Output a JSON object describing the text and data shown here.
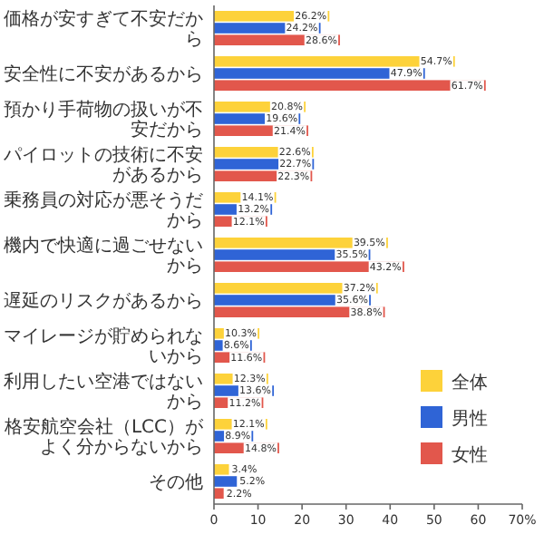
{
  "chart_data": {
    "type": "bar",
    "orientation": "horizontal",
    "categories": [
      "価格が安すぎて不安だから",
      "安全性に不安があるから",
      "預かり手荷物の扱いが不安だから",
      "パイロットの技術に不安があるから",
      "乗務員の対応が悪そうだから",
      "機内で快適に過ごせないから",
      "遅延のリスクがあるから",
      "マイレージが貯められないから",
      "利用したい空港ではないから",
      "格安航空会社（LCC）がよく分からないから",
      "その他"
    ],
    "series": [
      {
        "name": "全体",
        "color": "#fdd23a",
        "values": [
          26.2,
          54.7,
          20.8,
          22.6,
          14.1,
          39.5,
          37.2,
          10.3,
          12.3,
          12.1,
          3.4
        ],
        "value_labels": [
          "26.2%",
          "54.7%",
          "20.8%",
          "22.6%",
          "14.1%",
          "39.5%",
          "37.2%",
          "10.3%",
          "12.3%",
          "12.1%",
          "3.4%"
        ]
      },
      {
        "name": "男性",
        "color": "#2f64d6",
        "values": [
          24.2,
          47.9,
          19.6,
          22.7,
          13.2,
          35.5,
          35.6,
          8.6,
          13.6,
          8.9,
          5.2
        ],
        "value_labels": [
          "24.2%",
          "47.9%",
          "19.6%",
          "22.7%",
          "13.2%",
          "35.5%",
          "35.6%",
          "8.6%",
          "13.6%",
          "8.9%",
          "5.2%"
        ]
      },
      {
        "name": "女性",
        "color": "#e2574c",
        "values": [
          28.6,
          61.7,
          21.4,
          22.3,
          12.1,
          43.2,
          38.8,
          11.6,
          11.2,
          14.8,
          2.2
        ],
        "value_labels": [
          "28.6%",
          "61.7%",
          "21.4%",
          "22.3%",
          "12.1%",
          "43.2%",
          "38.8%",
          "11.6%",
          "11.2%",
          "14.8%",
          "2.2%"
        ]
      }
    ],
    "xlim": [
      0,
      70
    ],
    "xticks": [
      0,
      10,
      20,
      30,
      40,
      50,
      60,
      {
        "value": 70,
        "label": "70%"
      }
    ],
    "legend": "bottom right"
  }
}
